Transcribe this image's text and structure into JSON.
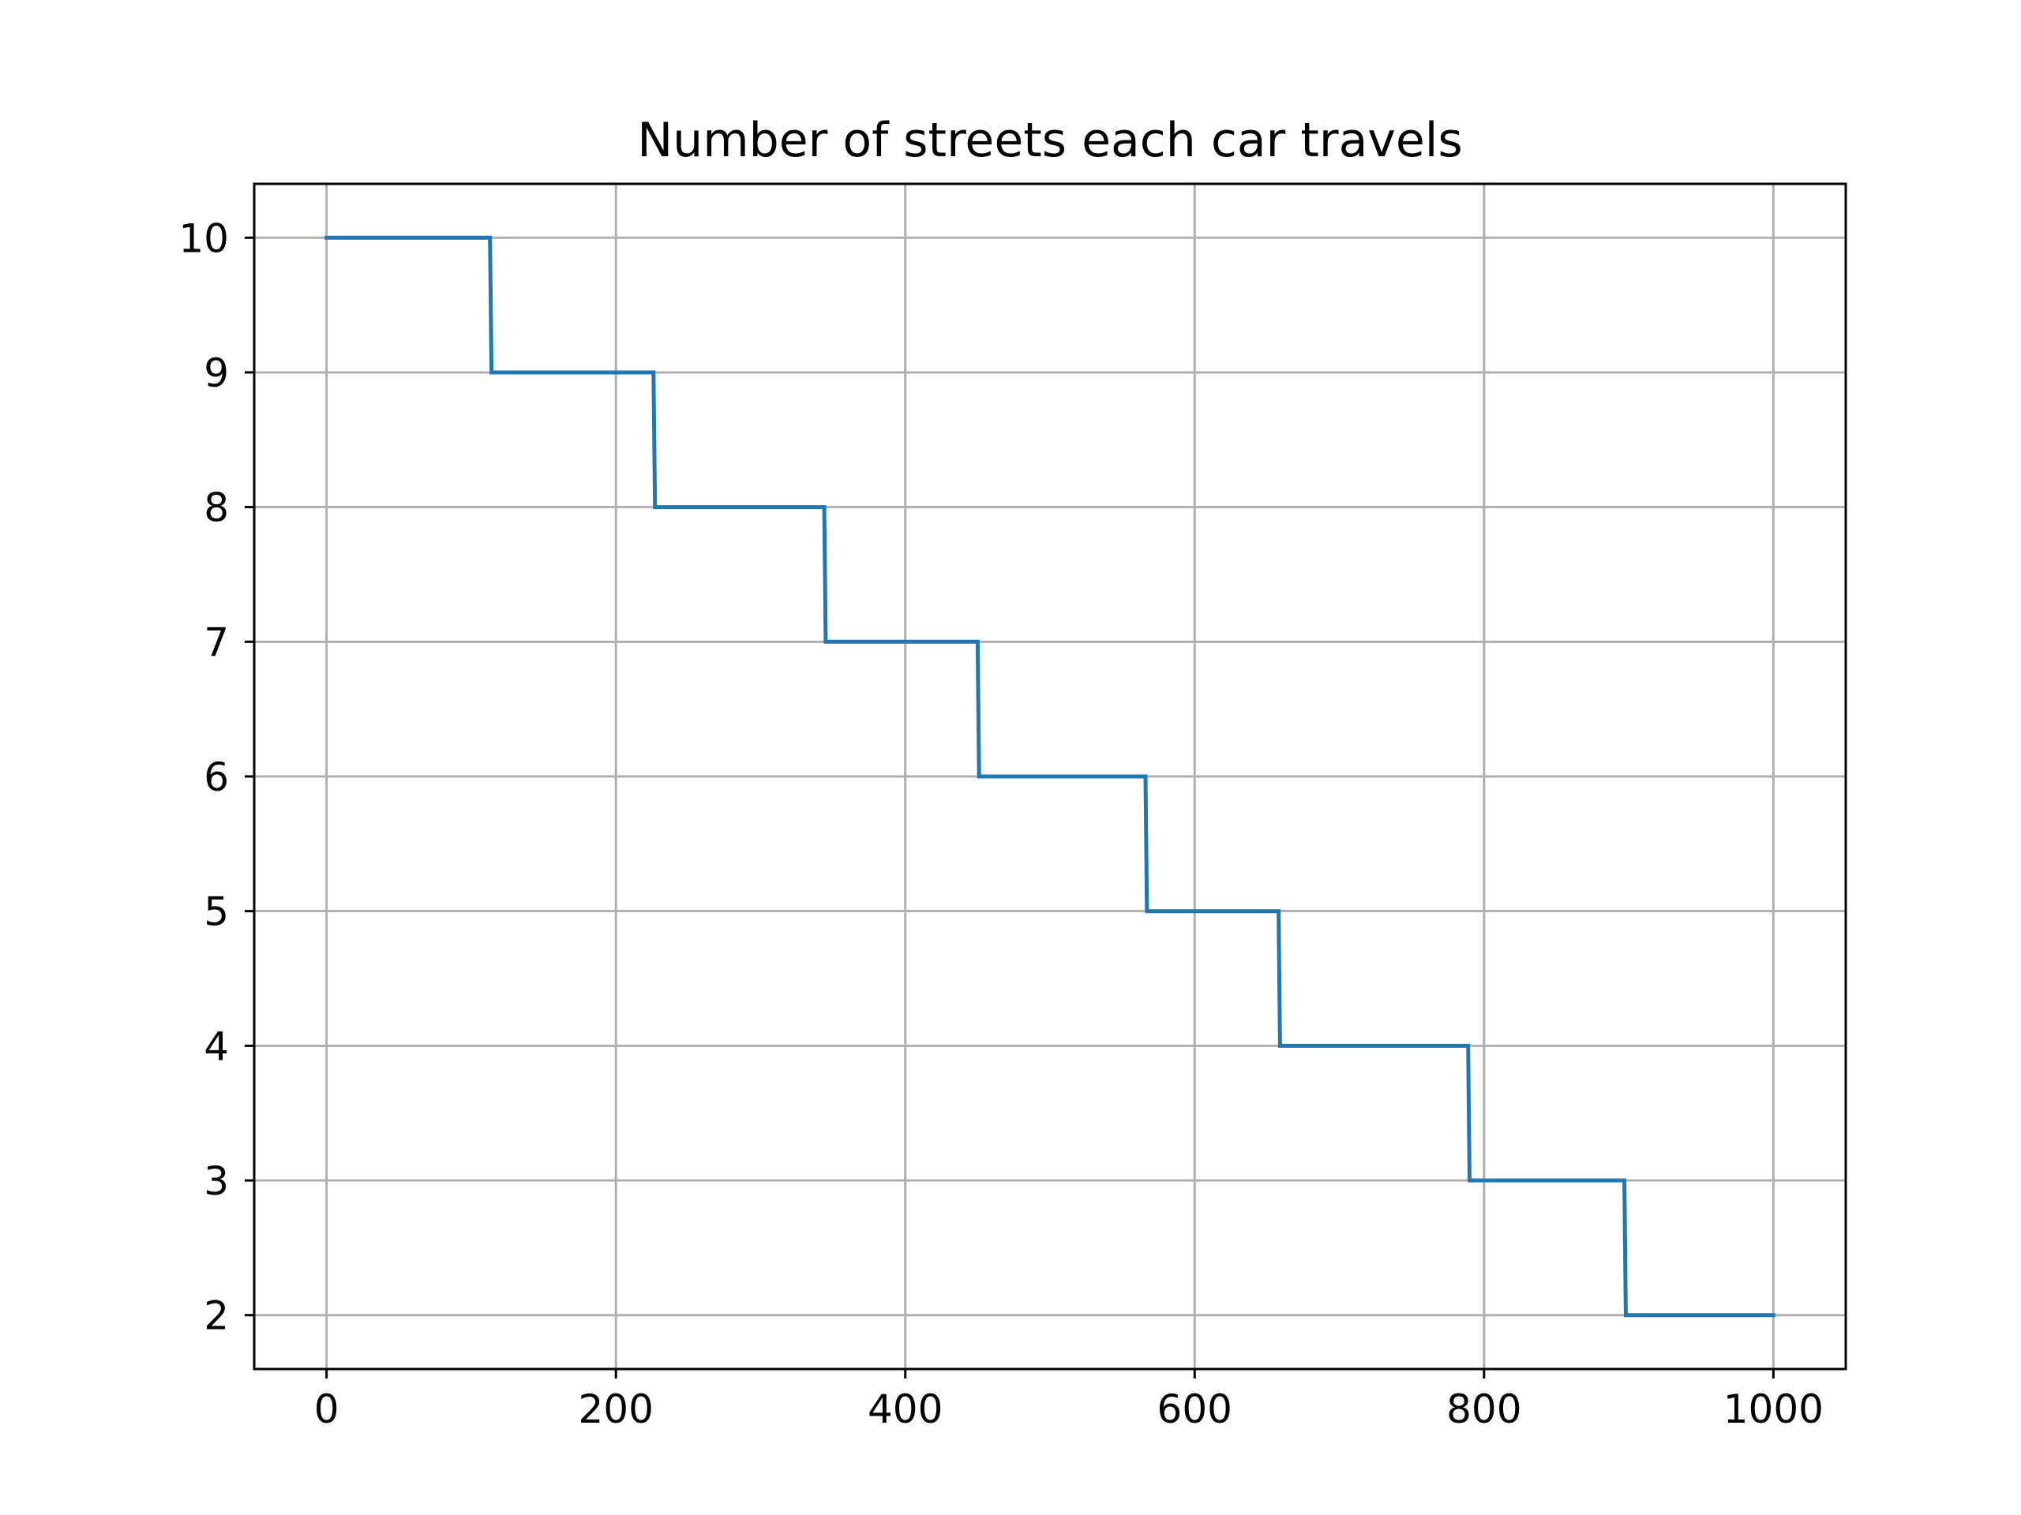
{
  "chart_data": {
    "type": "line",
    "title": "Number of streets each car travels",
    "xlabel": "",
    "ylabel": "",
    "xlim": [
      -50,
      1050
    ],
    "ylim": [
      1.6,
      10.4
    ],
    "grid": true,
    "x_ticks": [
      0,
      200,
      400,
      600,
      800,
      1000
    ],
    "y_ticks": [
      2,
      3,
      4,
      5,
      6,
      7,
      8,
      9,
      10
    ],
    "colors": {
      "line": "#1f77b4",
      "grid": "#b0b0b0",
      "axes": "#000000"
    },
    "series": [
      {
        "drawstyle": "steps",
        "x": [
          0,
          113,
          114,
          226,
          227,
          344,
          345,
          450,
          451,
          566,
          567,
          658,
          659,
          789,
          790,
          897,
          898,
          1000
        ],
        "y": [
          10,
          10,
          9,
          9,
          8,
          8,
          7,
          7,
          6,
          6,
          5,
          5,
          4,
          4,
          3,
          3,
          2,
          2
        ]
      }
    ]
  }
}
